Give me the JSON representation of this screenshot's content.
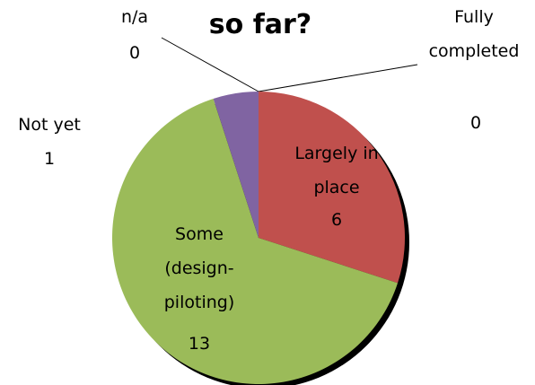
{
  "chart_data": {
    "type": "pie",
    "title": "so far?",
    "categories": [
      "Fully completed",
      "Largely in place",
      "Some (design-piloting)",
      "Not yet",
      "n/a"
    ],
    "values": [
      0,
      6,
      13,
      1,
      0
    ],
    "colors": [
      "#4f81bd",
      "#c0504d",
      "#9bbb59",
      "#8064a2",
      "#4bacc6"
    ]
  }
}
